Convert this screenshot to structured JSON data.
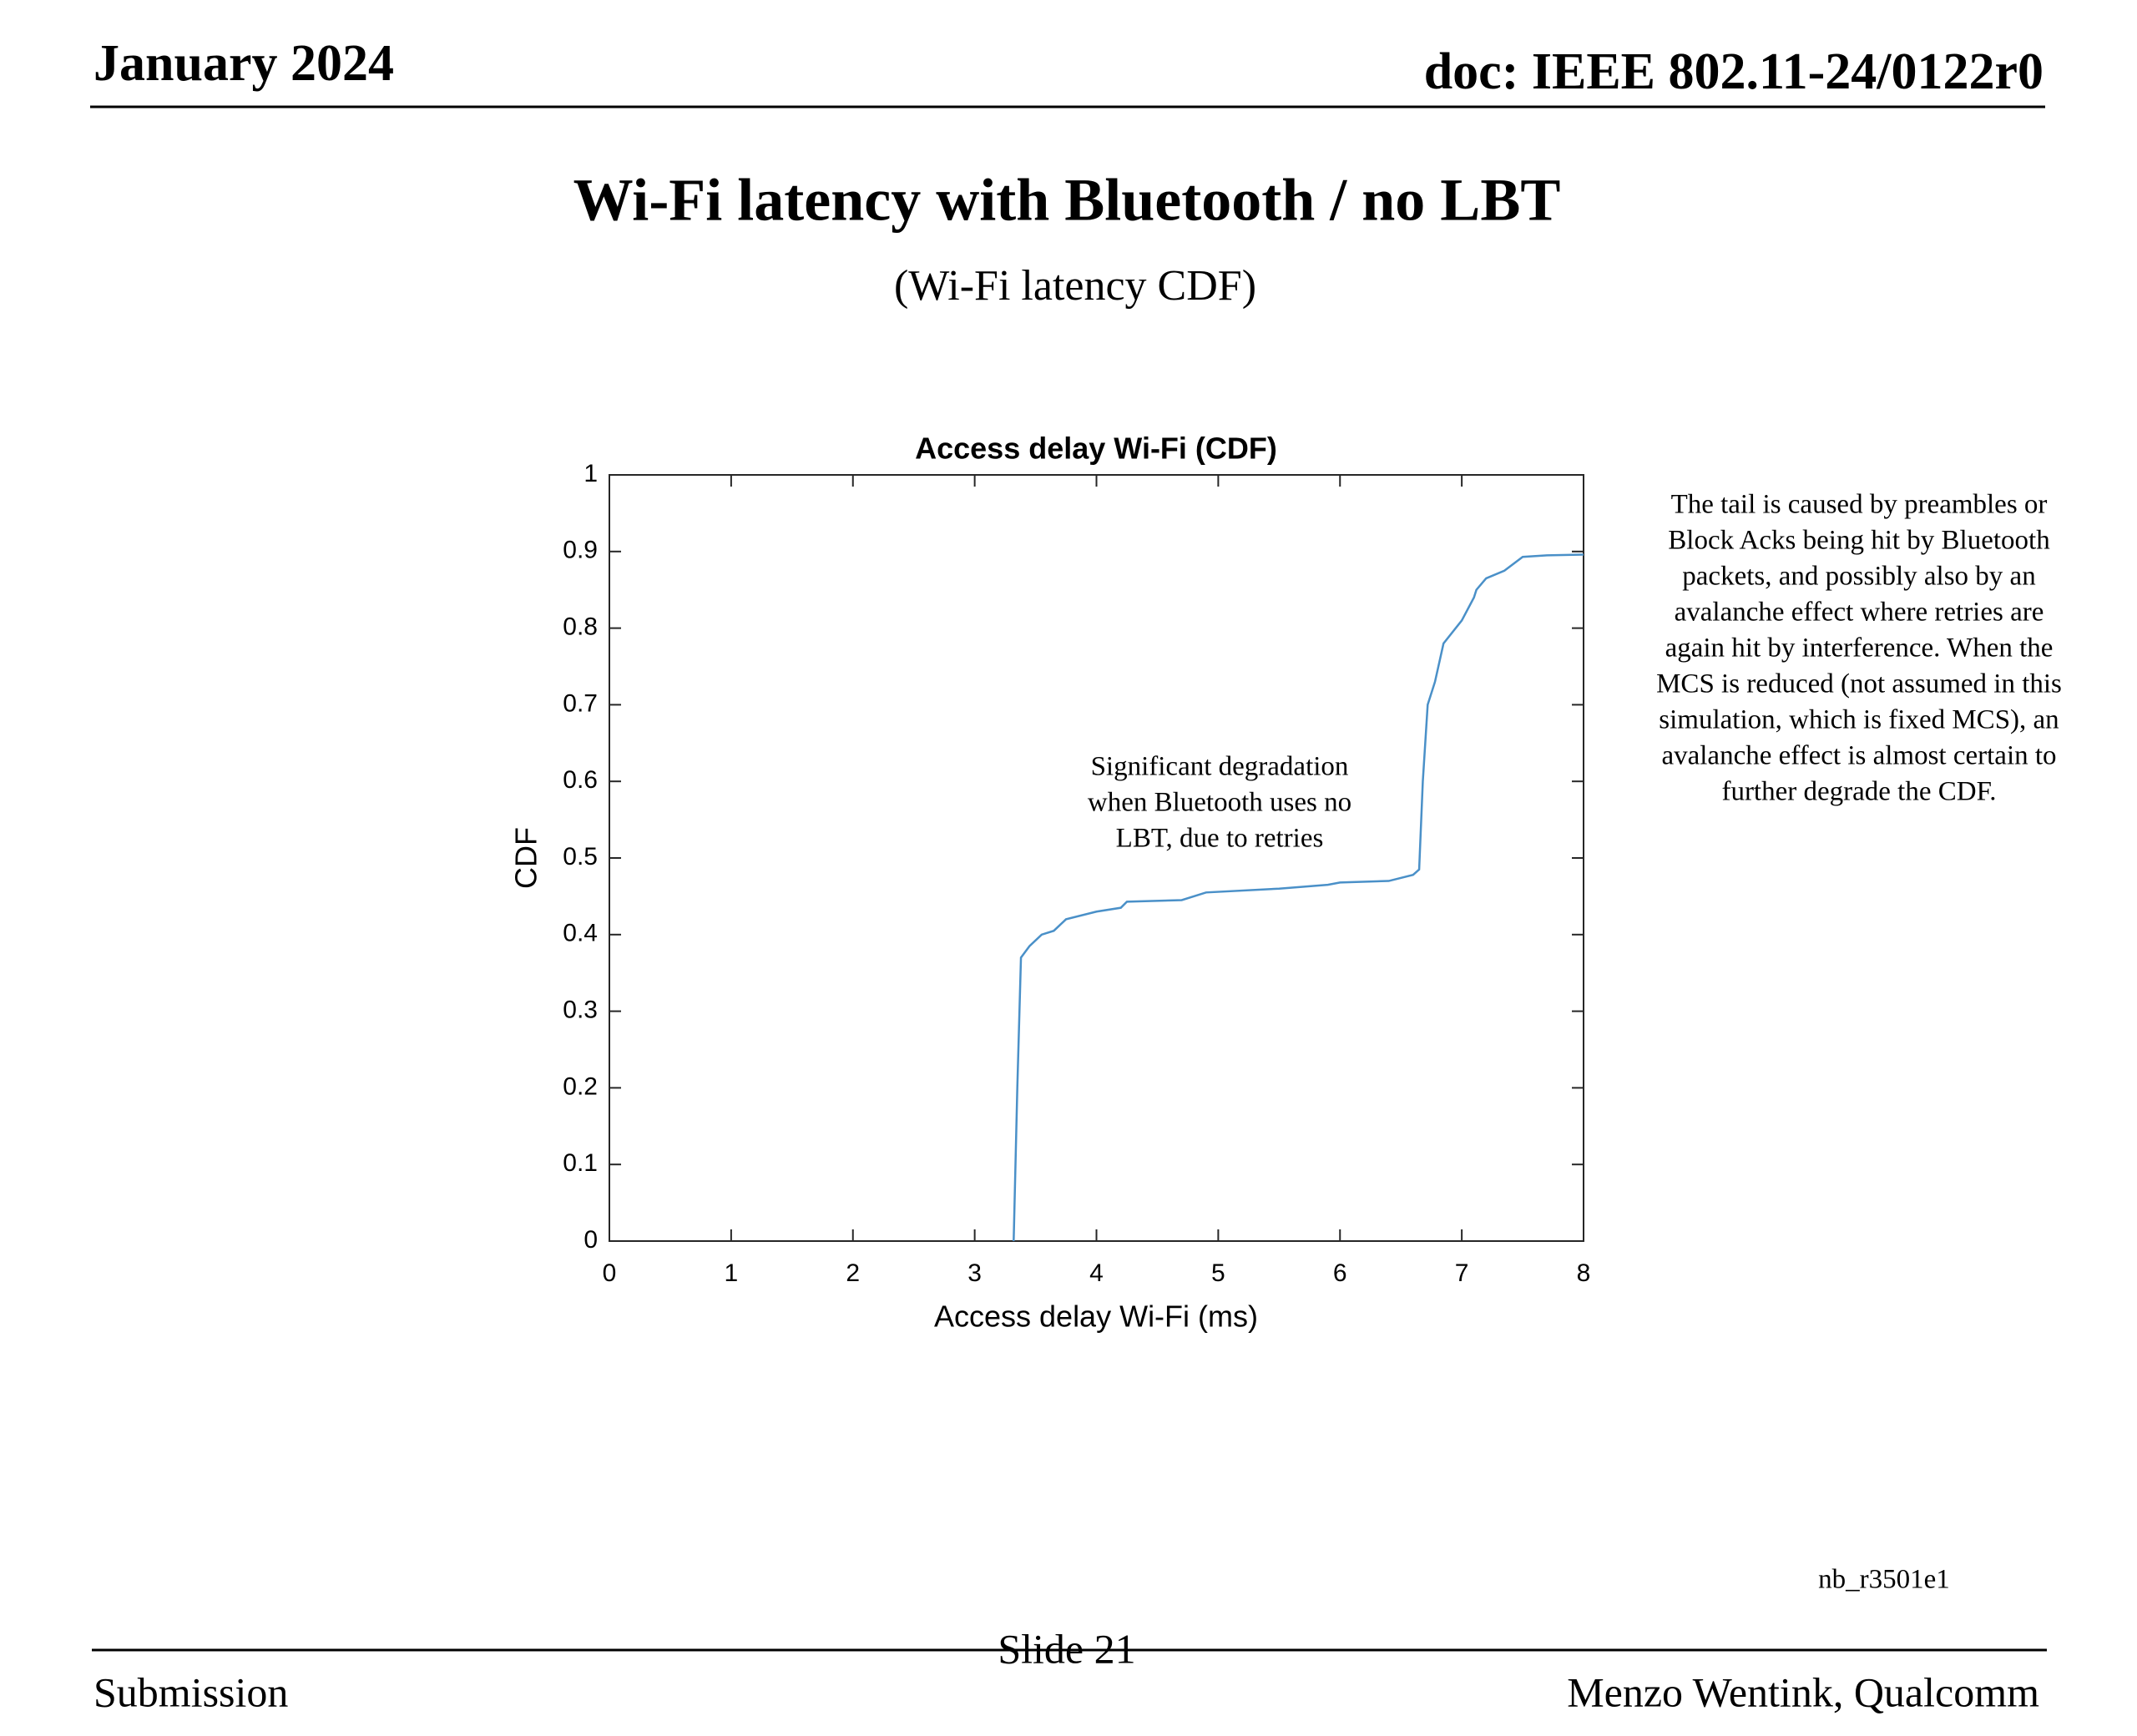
{
  "header": {
    "date": "January 2024",
    "doc": "doc: IEEE 802.11-24/0122r0"
  },
  "title": "Wi-Fi latency with Bluetooth / no LBT",
  "subtitle": "(Wi-Fi latency CDF)",
  "chart_data": {
    "type": "line",
    "title": "Access delay Wi-Fi (CDF)",
    "xlabel": "Access delay Wi-Fi (ms)",
    "ylabel": "CDF",
    "x": [
      3.32,
      3.35,
      3.38,
      3.45,
      3.55,
      3.65,
      3.75,
      4.0,
      4.2,
      4.25,
      4.7,
      4.9,
      5.5,
      5.9,
      6.0,
      6.4,
      6.6,
      6.65,
      6.68,
      6.72,
      6.78,
      6.85,
      7.0,
      7.1,
      7.12,
      7.2,
      7.35,
      7.5,
      7.7,
      8.0
    ],
    "values": [
      0,
      0.2,
      0.37,
      0.385,
      0.4,
      0.405,
      0.42,
      0.43,
      0.435,
      0.443,
      0.445,
      0.455,
      0.46,
      0.465,
      0.468,
      0.47,
      0.478,
      0.485,
      0.6,
      0.7,
      0.73,
      0.78,
      0.81,
      0.84,
      0.85,
      0.865,
      0.875,
      0.893,
      0.895,
      0.896
    ],
    "color": "#4a90c8",
    "xlim": [
      0,
      8
    ],
    "xticks": [
      0,
      1,
      2,
      3,
      4,
      5,
      6,
      7,
      8
    ],
    "ylim": [
      0,
      1
    ],
    "yticks": [
      0,
      0.1,
      0.2,
      0.3,
      0.4,
      0.5,
      0.6,
      0.7,
      0.8,
      0.9,
      1
    ],
    "annotation": [
      "Significant degradation",
      "when Bluetooth uses no",
      "LBT, due to retries"
    ]
  },
  "note": [
    "The tail is caused by preambles or",
    "Block Acks being hit by Bluetooth",
    "packets, and possibly also by an",
    "avalanche effect where retries are",
    "again hit by interference. When the",
    "MCS is reduced (not assumed in this",
    "simulation, which is fixed MCS), an",
    "avalanche effect is almost certain to",
    "further degrade the CDF."
  ],
  "tag": "nb_r3501e1",
  "footer": {
    "left": "Submission",
    "center": "Slide 21",
    "right": "Menzo Wentink, Qualcomm"
  }
}
